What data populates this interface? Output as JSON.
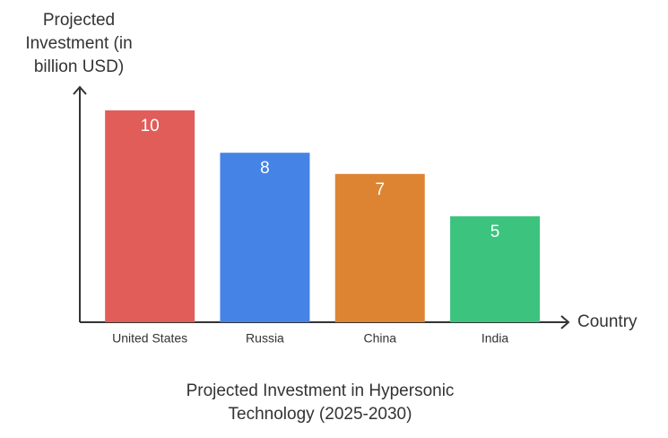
{
  "chart_data": {
    "type": "bar",
    "title": "Projected Investment in Hypersonic Technology (2025-2030)",
    "x_label": "Country",
    "y_label": "Projected Investment (in billion USD)",
    "categories": [
      "United States",
      "Russia",
      "China",
      "India"
    ],
    "values": [
      10,
      8,
      7,
      5
    ],
    "colors": [
      "#e05d5a",
      "#4683e6",
      "#dd8433",
      "#3cc47f"
    ],
    "ylim": [
      0,
      10
    ]
  }
}
